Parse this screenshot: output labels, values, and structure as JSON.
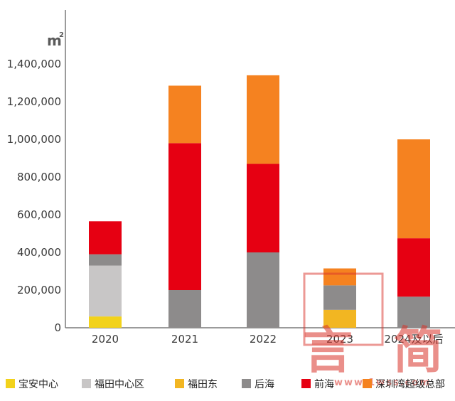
{
  "chart_data": {
    "type": "bar",
    "stacked": true,
    "unit": "m",
    "unit_superscript": "2",
    "categories": [
      "2020",
      "2021",
      "2022",
      "2023",
      "2024及以后"
    ],
    "series": [
      {
        "name": "宝安中心",
        "color": "#f2d21b",
        "values": [
          60000,
          0,
          0,
          0,
          0
        ]
      },
      {
        "name": "福田中心区",
        "color": "#c8c6c6",
        "values": [
          270000,
          0,
          0,
          0,
          0
        ]
      },
      {
        "name": "福田东",
        "color": "#f2b622",
        "values": [
          0,
          0,
          0,
          95000,
          0
        ]
      },
      {
        "name": "后海",
        "color": "#8d8b8b",
        "values": [
          60000,
          200000,
          400000,
          130000,
          165000
        ]
      },
      {
        "name": "前海",
        "color": "#e60012",
        "values": [
          175000,
          780000,
          470000,
          0,
          310000
        ]
      },
      {
        "name": "深圳湾超级总部",
        "color": "#f58220",
        "values": [
          0,
          305000,
          470000,
          90000,
          525000
        ]
      }
    ],
    "ylim": [
      0,
      1400000
    ],
    "yticks": [
      "0",
      "200,000",
      "400,000",
      "600,000",
      "800,000",
      "1,000,000",
      "1,200,000",
      "1,400,000"
    ],
    "ytick_values": [
      0,
      200000,
      400000,
      600000,
      800000,
      1000000,
      1200000,
      1400000
    ],
    "grid": false,
    "legend_position": "bottom"
  },
  "watermark": {
    "glyphs": [
      "言",
      "简"
    ],
    "url": "www.1wss.com"
  }
}
